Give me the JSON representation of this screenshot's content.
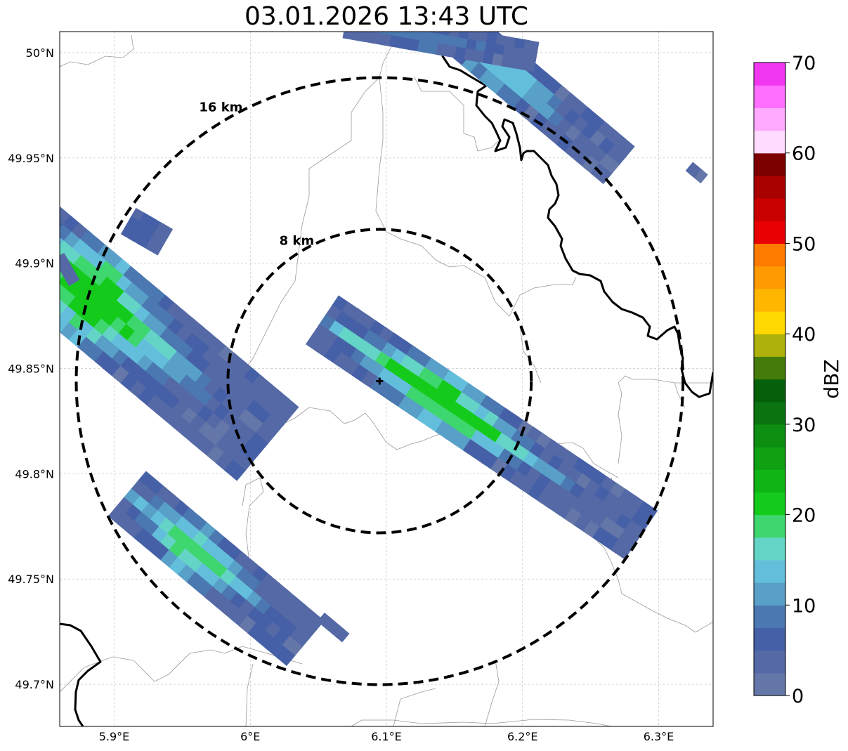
{
  "title": "03.01.2026 13:43 UTC",
  "map": {
    "lon_range": [
      5.86,
      6.34
    ],
    "lat_range": [
      49.68,
      50.01
    ],
    "x_ticks": [
      {
        "value": 5.9,
        "label": "5.9°E"
      },
      {
        "value": 6.0,
        "label": "6°E"
      },
      {
        "value": 6.1,
        "label": "6.1°E"
      },
      {
        "value": 6.2,
        "label": "6.2°E"
      },
      {
        "value": 6.3,
        "label": "6.3°E"
      }
    ],
    "y_ticks": [
      {
        "value": 50.0,
        "label": "50°N"
      },
      {
        "value": 49.95,
        "label": "49.95°N"
      },
      {
        "value": 49.9,
        "label": "49.9°N"
      },
      {
        "value": 49.85,
        "label": "49.85°N"
      },
      {
        "value": 49.8,
        "label": "49.8°N"
      },
      {
        "value": 49.75,
        "label": "49.75°N"
      },
      {
        "value": 49.7,
        "label": "49.7°N"
      }
    ],
    "grid": true,
    "radar_center": {
      "lon": 6.095,
      "lat": 49.844
    },
    "range_rings": [
      {
        "label": "8 km",
        "radius_km": 8
      },
      {
        "label": "16 km",
        "radius_km": 16
      }
    ],
    "echoes": [
      {
        "name": "echo-northwest",
        "lon": 5.91,
        "lat": 49.87,
        "length_km": 19,
        "width_km": 5,
        "angle_deg": 40,
        "max_dbz": 22
      },
      {
        "name": "echo-east",
        "lon": 6.17,
        "lat": 49.822,
        "length_km": 20,
        "width_km": 3,
        "angle_deg": 34,
        "max_dbz": 22
      },
      {
        "name": "echo-southwest",
        "lon": 5.975,
        "lat": 49.755,
        "length_km": 12,
        "width_km": 3,
        "angle_deg": 40,
        "max_dbz": 18
      },
      {
        "name": "echo-north",
        "lon": 6.2,
        "lat": 49.985,
        "length_km": 13,
        "width_km": 2.5,
        "angle_deg": 40,
        "max_dbz": 14
      },
      {
        "name": "echo-top",
        "lon": 6.14,
        "lat": 50.006,
        "length_km": 10,
        "width_km": 1.5,
        "angle_deg": 10,
        "max_dbz": 8
      },
      {
        "name": "echo-speck-west",
        "lon": 5.924,
        "lat": 49.915,
        "length_km": 2,
        "width_km": 1.5,
        "angle_deg": 30,
        "max_dbz": 6
      },
      {
        "name": "echo-speck-far-west",
        "lon": 5.865,
        "lat": 49.897,
        "length_km": 1.5,
        "width_km": 0.6,
        "angle_deg": 60,
        "max_dbz": 4
      },
      {
        "name": "echo-speck-south",
        "lon": 6.061,
        "lat": 49.727,
        "length_km": 1.6,
        "width_km": 0.5,
        "angle_deg": 40,
        "max_dbz": 4
      },
      {
        "name": "echo-speck-east",
        "lon": 6.328,
        "lat": 49.943,
        "length_km": 0.9,
        "width_km": 0.5,
        "angle_deg": 40,
        "max_dbz": 4
      }
    ]
  },
  "colorbar": {
    "label": "dBZ",
    "min": 0,
    "max": 70,
    "step": 2.5,
    "tick_values": [
      0,
      10,
      20,
      30,
      40,
      50,
      60,
      70
    ],
    "colors": [
      "#6477a8",
      "#5469a5",
      "#4560a6",
      "#4b78b1",
      "#58a0c8",
      "#63bedc",
      "#64d4c6",
      "#3ed66e",
      "#14cb1c",
      "#10b515",
      "#0fa112",
      "#0e8e10",
      "#0b7410",
      "#05600a",
      "#457b0b",
      "#aeb10a",
      "#fed800",
      "#ffb600",
      "#ff9a00",
      "#ff7b00",
      "#e90000",
      "#c90000",
      "#a90000",
      "#7d0000",
      "#ffdbff",
      "#ffaaff",
      "#ff6eff",
      "#f237f2"
    ]
  }
}
